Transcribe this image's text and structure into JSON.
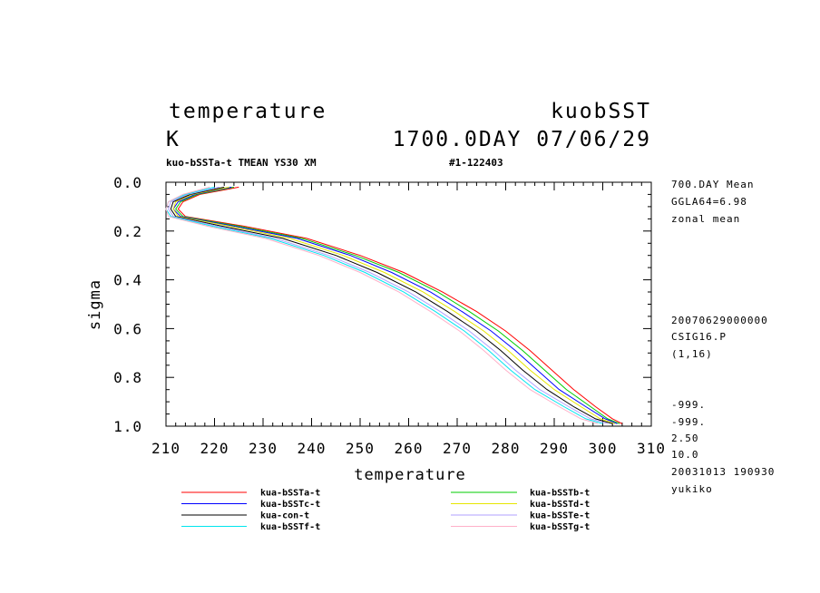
{
  "header": {
    "title_left": "temperature",
    "title_right": "kuobSST",
    "unit": "K",
    "date_line": "1700.0DAY 07/06/29",
    "subtitle_left": "kuo-bSSTa-t TMEAN YS30 XM",
    "subtitle_right": "#1-122403"
  },
  "side_info": {
    "top": [
      "700.DAY Mean",
      "GGLA64=6.98",
      "zonal mean"
    ],
    "middle": [
      "20070629000000",
      "CSIG16.P",
      "(1,16)"
    ],
    "lower": [
      "-999.",
      "-999."
    ],
    "bottom": [
      "2.50",
      "10.0",
      "20031013 190930",
      "yukiko"
    ]
  },
  "chart_data": {
    "type": "line",
    "xlabel": "temperature",
    "ylabel": "sigma",
    "xlim": [
      210,
      310
    ],
    "ylim": [
      0.0,
      1.0
    ],
    "y_inverted": true,
    "x_ticks": [
      210,
      220,
      230,
      240,
      250,
      260,
      270,
      280,
      290,
      300,
      310
    ],
    "x_tick_labels": [
      "210",
      "220",
      "230",
      "240",
      "250",
      "260",
      "270",
      "280",
      "290",
      "300",
      "310"
    ],
    "y_ticks": [
      0.0,
      0.2,
      0.4,
      0.6,
      0.8,
      1.0
    ],
    "y_tick_labels": [
      "0.0",
      "0.2",
      "0.4",
      "0.6",
      "0.8",
      "1.0"
    ],
    "grid": false,
    "legend_placement": "bottom",
    "sigma": [
      0.02,
      0.05,
      0.08,
      0.11,
      0.14,
      0.18,
      0.23,
      0.3,
      0.37,
      0.45,
      0.53,
      0.61,
      0.69,
      0.77,
      0.85,
      0.92,
      0.97,
      0.99
    ],
    "series": [
      {
        "name": "kua-bSSTa-t",
        "color": "#ff0000",
        "values": [
          225,
          217,
          213.5,
          212.5,
          214,
          226,
          239,
          250,
          259,
          267,
          274,
          280,
          285,
          289.5,
          294,
          298.5,
          302,
          304
        ]
      },
      {
        "name": "kua-bSSTb-t",
        "color": "#00cc00",
        "values": [
          224,
          216.5,
          213,
          212,
          213.5,
          225,
          238,
          249,
          258,
          266,
          272.5,
          278.5,
          283.5,
          288,
          292.5,
          297.5,
          301,
          303.5
        ]
      },
      {
        "name": "kua-bSSTc-t",
        "color": "#0000ff",
        "values": [
          223.5,
          216,
          212.5,
          211.5,
          213,
          224,
          237,
          248,
          256.5,
          264.5,
          271,
          277,
          282,
          286.5,
          291,
          296.5,
          300.5,
          303
        ]
      },
      {
        "name": "kua-bSSTd-t",
        "color": "#e6e600",
        "values": [
          223,
          215.5,
          212,
          211.5,
          212.5,
          223,
          235.5,
          246.5,
          255,
          263,
          269.5,
          275.5,
          280.5,
          285,
          290,
          295.5,
          299.5,
          302.5
        ]
      },
      {
        "name": "kua-con-t",
        "color": "#000000",
        "values": [
          222,
          215,
          211.5,
          211,
          212,
          221.5,
          234,
          245,
          253.5,
          261.5,
          268,
          274,
          279,
          283.5,
          288.5,
          294,
          298.5,
          302
        ]
      },
      {
        "name": "kua-bSSTe-t",
        "color": "#b0a0ff",
        "values": [
          221,
          214.5,
          211,
          210.5,
          211.5,
          220.5,
          232.5,
          243.5,
          252,
          260,
          266.5,
          272.5,
          277.5,
          282,
          287,
          293,
          297.5,
          301
        ]
      },
      {
        "name": "kua-bSSTf-t",
        "color": "#00e5ee",
        "values": [
          220,
          214,
          210.5,
          210,
          211,
          219.5,
          231.5,
          242.5,
          251,
          259,
          265.5,
          271.5,
          276.5,
          281,
          286,
          292,
          296.5,
          300
        ]
      },
      {
        "name": "kua-bSSTg-t",
        "color": "#ffb0c8",
        "values": [
          219,
          213.5,
          210.5,
          210,
          210.5,
          218.5,
          230.5,
          241.5,
          250,
          258,
          264.5,
          270.5,
          275.5,
          280,
          285,
          291,
          295.5,
          299
        ]
      }
    ]
  }
}
